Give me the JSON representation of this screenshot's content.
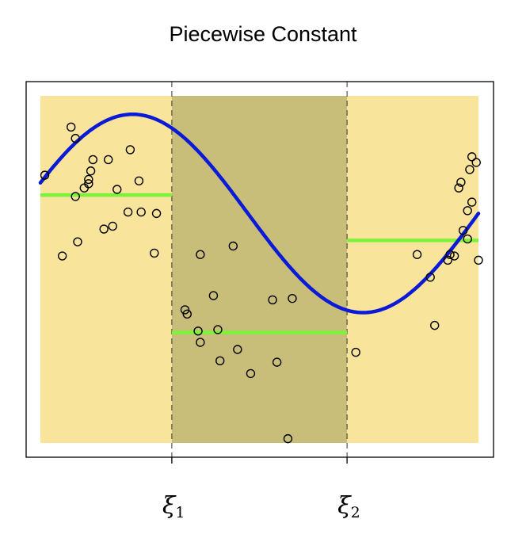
{
  "chart_data": {
    "type": "scatter",
    "title": "Piecewise Constant",
    "xlim": [
      0,
      1
    ],
    "ylim": [
      -1.25,
      1.2
    ],
    "axes_ticks": false,
    "grid": false,
    "knots": [
      {
        "name": "xi-1",
        "symbol": "ξ",
        "sub": "1",
        "x": 0.3
      },
      {
        "name": "xi-2",
        "symbol": "ξ",
        "sub": "2",
        "x": 0.7
      }
    ],
    "regions": [
      {
        "from": 0.0,
        "to": 0.3,
        "color": "#f9e49b"
      },
      {
        "from": 0.3,
        "to": 0.7,
        "color": "#c8bd79"
      },
      {
        "from": 0.7,
        "to": 1.0,
        "color": "#f9e49b"
      }
    ],
    "points": [
      {
        "x": 0.01,
        "y": 0.64
      },
      {
        "x": 0.05,
        "y": 0.07
      },
      {
        "x": 0.07,
        "y": 0.98
      },
      {
        "x": 0.08,
        "y": 0.49
      },
      {
        "x": 0.08,
        "y": 0.9
      },
      {
        "x": 0.085,
        "y": 0.17
      },
      {
        "x": 0.1,
        "y": 0.55
      },
      {
        "x": 0.11,
        "y": 0.58
      },
      {
        "x": 0.11,
        "y": 0.61
      },
      {
        "x": 0.115,
        "y": 0.67
      },
      {
        "x": 0.12,
        "y": 0.75
      },
      {
        "x": 0.145,
        "y": 0.26
      },
      {
        "x": 0.155,
        "y": 0.75
      },
      {
        "x": 0.165,
        "y": 0.28
      },
      {
        "x": 0.175,
        "y": 0.54
      },
      {
        "x": 0.2,
        "y": 0.38
      },
      {
        "x": 0.205,
        "y": 0.82
      },
      {
        "x": 0.225,
        "y": 0.6
      },
      {
        "x": 0.23,
        "y": 0.38
      },
      {
        "x": 0.26,
        "y": 0.09
      },
      {
        "x": 0.265,
        "y": 0.37
      },
      {
        "x": 0.33,
        "y": -0.31
      },
      {
        "x": 0.335,
        "y": -0.34
      },
      {
        "x": 0.36,
        "y": -0.46
      },
      {
        "x": 0.365,
        "y": -0.54
      },
      {
        "x": 0.365,
        "y": 0.08
      },
      {
        "x": 0.395,
        "y": -0.21
      },
      {
        "x": 0.405,
        "y": -0.45
      },
      {
        "x": 0.41,
        "y": -0.67
      },
      {
        "x": 0.44,
        "y": 0.14
      },
      {
        "x": 0.45,
        "y": -0.59
      },
      {
        "x": 0.48,
        "y": -0.76
      },
      {
        "x": 0.53,
        "y": -0.24
      },
      {
        "x": 0.54,
        "y": -0.68
      },
      {
        "x": 0.565,
        "y": -1.22
      },
      {
        "x": 0.575,
        "y": -0.23
      },
      {
        "x": 0.72,
        "y": -0.61
      },
      {
        "x": 0.86,
        "y": 0.08
      },
      {
        "x": 0.89,
        "y": -0.08
      },
      {
        "x": 0.9,
        "y": -0.42
      },
      {
        "x": 0.93,
        "y": 0.04
      },
      {
        "x": 0.935,
        "y": 0.08
      },
      {
        "x": 0.945,
        "y": 0.07
      },
      {
        "x": 0.955,
        "y": 0.55
      },
      {
        "x": 0.96,
        "y": 0.59
      },
      {
        "x": 0.965,
        "y": 0.25
      },
      {
        "x": 0.975,
        "y": 0.19
      },
      {
        "x": 0.975,
        "y": 0.39
      },
      {
        "x": 0.985,
        "y": 0.45
      },
      {
        "x": 0.98,
        "y": 0.68
      },
      {
        "x": 1.0,
        "y": 0.04
      },
      {
        "x": 0.985,
        "y": 0.77
      },
      {
        "x": 0.995,
        "y": 0.73
      }
    ],
    "true_curve": {
      "color": "#0a1ad6",
      "x_start": 0.0,
      "x_end": 1.0
    },
    "fits": [
      {
        "from": 0.0,
        "to": 0.3,
        "y": 0.5
      },
      {
        "from": 0.3,
        "to": 0.7,
        "y": -0.47
      },
      {
        "from": 0.7,
        "to": 1.0,
        "y": 0.18
      }
    ],
    "fit_color": "#7cf23a"
  }
}
